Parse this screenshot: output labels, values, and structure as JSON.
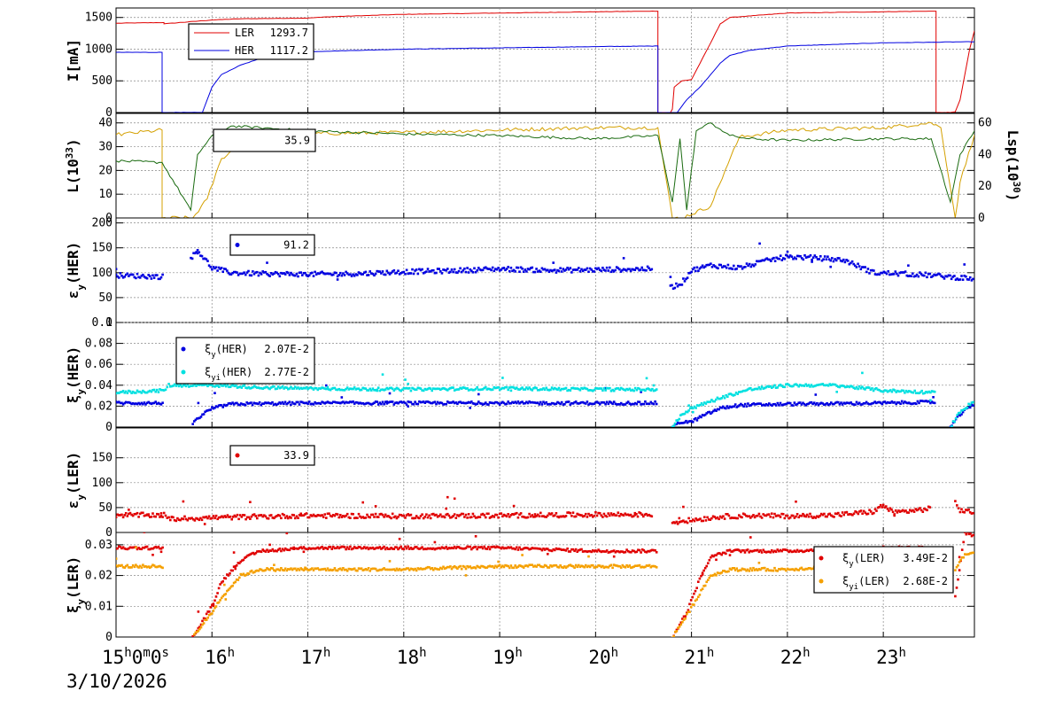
{
  "chart_data": {
    "date": "3/10/2026",
    "x_ticks": [
      {
        "h": 15,
        "label": "15",
        "sup": "h",
        "extra": "0m0s"
      },
      {
        "h": 16,
        "label": "16",
        "sup": "h"
      },
      {
        "h": 17,
        "label": "17",
        "sup": "h"
      },
      {
        "h": 18,
        "label": "18",
        "sup": "h"
      },
      {
        "h": 19,
        "label": "19",
        "sup": "h"
      },
      {
        "h": 20,
        "label": "20",
        "sup": "h"
      },
      {
        "h": 21,
        "label": "21",
        "sup": "h"
      },
      {
        "h": 22,
        "label": "22",
        "sup": "h"
      },
      {
        "h": 23,
        "label": "23",
        "sup": "h"
      }
    ],
    "xlim": [
      15.0,
      23.95
    ],
    "panels": [
      {
        "id": "current",
        "type": "line",
        "ylabel": "I[mA]",
        "ylim": [
          0,
          1650
        ],
        "yticks": [
          "0",
          "500",
          "1000",
          "1500"
        ],
        "ytick_values": [
          0,
          500,
          1000,
          1500
        ],
        "legend": [
          {
            "name": "LER",
            "value": "1293.7",
            "color": "#e00000"
          },
          {
            "name": "HER",
            "value": "1117.2",
            "color": "#0000e0"
          }
        ],
        "series": [
          {
            "name": "LER",
            "color": "#e00000",
            "x": [
              15.0,
              15.5,
              15.5,
              16.0,
              16.3,
              17.0,
              17.2,
              18.0,
              19.0,
              20.0,
              20.65,
              20.65,
              20.78,
              20.8,
              20.82,
              20.9,
              21.0,
              21.2,
              21.3,
              21.4,
              22.0,
              22.5,
              23.0,
              23.5,
              23.55,
              23.55,
              23.7,
              23.75,
              23.8,
              23.85,
              23.9,
              23.95
            ],
            "y": [
              1410,
              1420,
              1400,
              1460,
              1480,
              1490,
              1510,
              1550,
              1570,
              1590,
              1600,
              0,
              0,
              50,
              400,
              500,
              520,
              1100,
              1400,
              1500,
              1570,
              1580,
              1590,
              1600,
              1600,
              0,
              0,
              10,
              200,
              600,
              1000,
              1290
            ]
          },
          {
            "name": "HER",
            "color": "#0000e0",
            "x": [
              15.0,
              15.48,
              15.48,
              15.9,
              16.0,
              16.1,
              16.3,
              16.5,
              16.8,
              17.0,
              17.5,
              18.0,
              19.0,
              20.0,
              20.65,
              20.65,
              20.85,
              20.95,
              21.1,
              21.2,
              21.3,
              21.4,
              21.6,
              22.0,
              23.0,
              23.95
            ],
            "y": [
              950,
              950,
              0,
              0,
              400,
              600,
              750,
              850,
              920,
              960,
              980,
              1000,
              1020,
              1040,
              1050,
              0,
              0,
              200,
              420,
              600,
              780,
              900,
              980,
              1050,
              1100,
              1117
            ]
          }
        ]
      },
      {
        "id": "luminosity",
        "type": "line",
        "ylabel": "L(10^33)",
        "ylim": [
          0,
          44
        ],
        "yticks": [
          "0",
          "10",
          "20",
          "30",
          "40"
        ],
        "ytick_values": [
          0,
          10,
          20,
          30,
          40
        ],
        "y2label": "Lsp(10^30)",
        "y2lim": [
          0,
          66
        ],
        "y2ticks": [
          "0",
          "20",
          "40",
          "60"
        ],
        "y2tick_values": [
          0,
          20,
          40,
          60
        ],
        "legend": [
          {
            "name": "",
            "value": "35.9",
            "color": "#000000"
          }
        ],
        "series": [
          {
            "name": "L",
            "color": "#d4a000",
            "x": [
              15.0,
              15.48,
              15.48,
              15.8,
              15.95,
              16.1,
              16.3,
              16.6,
              17.0,
              18.0,
              19.0,
              20.0,
              20.65,
              20.72,
              20.8,
              20.9,
              21.2,
              21.35,
              21.5,
              22.0,
              23.0,
              23.5,
              23.6,
              23.75,
              23.8,
              23.95
            ],
            "y": [
              35,
              37,
              0,
              0,
              8,
              25,
              31,
              34,
              35.5,
              36,
              37,
              38,
              38,
              20,
              0,
              0,
              5,
              20,
              34,
              37,
              38,
              40,
              38,
              0,
              15,
              35
            ]
          },
          {
            "name": "Lsp",
            "color": "#1a6b10",
            "x": [
              15.0,
              15.48,
              15.78,
              15.85,
              16.0,
              16.2,
              16.5,
              17.0,
              18.0,
              19.0,
              20.0,
              20.65,
              20.8,
              20.88,
              20.95,
              21.05,
              21.2,
              21.3,
              21.4,
              21.6,
              22.0,
              23.0,
              23.5,
              23.7,
              23.8,
              23.95
            ],
            "y": [
              36,
              35,
              5,
              40,
              52,
              58,
              57,
              55,
              53,
              52,
              50,
              52,
              10,
              50,
              5,
              55,
              60,
              56,
              52,
              50,
              49,
              50,
              50,
              10,
              40,
              55
            ]
          }
        ]
      },
      {
        "id": "emit_her",
        "type": "scatter",
        "ylabel": "εy(HER)",
        "ylim": [
          0,
          210
        ],
        "yticks": [
          "0",
          "50",
          "100",
          "150",
          "200"
        ],
        "ytick_values": [
          0,
          50,
          100,
          150,
          200
        ],
        "legend": [
          {
            "name": "",
            "value": "91.2",
            "color": "#0000e0"
          }
        ],
        "series": [
          {
            "name": "εy(HER)",
            "color": "#0000e0",
            "x": [
              15.0,
              15.5,
              15.5,
              15.78,
              15.85,
              16.0,
              16.2,
              16.5,
              17.0,
              17.5,
              18.0,
              18.5,
              19.0,
              19.5,
              20.0,
              20.6,
              20.6,
              20.78,
              20.9,
              21.0,
              21.2,
              21.5,
              21.8,
              22.0,
              22.3,
              22.6,
              22.9,
              23.2,
              23.5,
              23.8,
              23.95
            ],
            "y": [
              95,
              92,
              null,
              130,
              145,
              110,
              100,
              98,
              97,
              98,
              102,
              104,
              108,
              105,
              106,
              108,
              null,
              70,
              80,
              105,
              115,
              110,
              125,
              132,
              130,
              125,
              100,
              98,
              95,
              90,
              88
            ]
          }
        ]
      },
      {
        "id": "tune_her",
        "type": "scatter",
        "ylabel": "ξy(HER)",
        "ylim": [
          0,
          0.1
        ],
        "yticks": [
          "0",
          "0.02",
          "0.04",
          "0.06",
          "0.08",
          "0.1"
        ],
        "ytick_values": [
          0,
          0.02,
          0.04,
          0.06,
          0.08,
          0.1
        ],
        "legend": [
          {
            "name": "ξy(HER)",
            "value": "2.07E-2",
            "color": "#0000e0"
          },
          {
            "name": "ξyi(HER)",
            "value": "2.77E-2",
            "color": "#00e0e0"
          }
        ],
        "series": [
          {
            "name": "ξy(HER)",
            "color": "#0000e0",
            "x": [
              15.0,
              15.5,
              15.5,
              15.8,
              15.9,
              16.0,
              16.2,
              17.0,
              18.0,
              19.0,
              20.0,
              20.65,
              20.65,
              20.8,
              20.9,
              21.0,
              21.1,
              21.3,
              21.5,
              22.0,
              23.0,
              23.55,
              23.55,
              23.7,
              23.8,
              23.95
            ],
            "y": [
              0.023,
              0.023,
              null,
              0.003,
              0.012,
              0.018,
              0.022,
              0.023,
              0.023,
              0.023,
              0.023,
              0.023,
              null,
              0,
              0.005,
              0.005,
              0.01,
              0.018,
              0.021,
              0.022,
              0.023,
              0.024,
              null,
              0,
              0.012,
              0.023
            ]
          },
          {
            "name": "ξyi(HER)",
            "color": "#00e0e0",
            "x": [
              15.0,
              15.5,
              15.55,
              16.0,
              16.5,
              17.0,
              18.0,
              19.0,
              20.0,
              20.65,
              20.65,
              20.8,
              20.9,
              21.0,
              21.3,
              21.6,
              22.0,
              22.5,
              23.0,
              23.55,
              23.55,
              23.7,
              23.8,
              23.95
            ],
            "y": [
              0.033,
              0.035,
              0.04,
              0.04,
              0.038,
              0.037,
              0.036,
              0.037,
              0.036,
              0.036,
              null,
              0,
              0.012,
              0.018,
              0.028,
              0.036,
              0.04,
              0.04,
              0.035,
              0.033,
              null,
              0,
              0.015,
              0.025
            ]
          }
        ]
      },
      {
        "id": "emit_ler",
        "type": "scatter",
        "ylabel": "εy(LER)",
        "ylim": [
          0,
          210
        ],
        "yticks": [
          "0",
          "50",
          "100",
          "150"
        ],
        "ytick_values": [
          0,
          50,
          100,
          150
        ],
        "legend": [
          {
            "name": "",
            "value": "33.9",
            "color": "#e00000"
          }
        ],
        "series": [
          {
            "name": "εy(LER)",
            "color": "#e00000",
            "x": [
              15.0,
              15.5,
              15.55,
              16.0,
              16.5,
              17.0,
              18.0,
              19.0,
              20.0,
              20.6,
              20.6,
              20.8,
              21.0,
              21.3,
              21.6,
              22.0,
              22.5,
              22.9,
              23.0,
              23.1,
              23.5,
              23.5,
              23.75,
              23.8,
              23.95
            ],
            "y": [
              35,
              35,
              27,
              30,
              32,
              34,
              33,
              34,
              36,
              36,
              null,
              20,
              25,
              32,
              34,
              33,
              35,
              42,
              55,
              40,
              48,
              null,
              60,
              45,
              40
            ]
          }
        ]
      },
      {
        "id": "tune_ler",
        "type": "scatter",
        "ylabel": "ξy(LER)",
        "ylim": [
          0,
          0.034
        ],
        "yticks": [
          "0",
          "0.01",
          "0.02",
          "0.03"
        ],
        "ytick_values": [
          0,
          0.01,
          0.02,
          0.03
        ],
        "legend": [
          {
            "name": "ξy(LER)",
            "value": "3.49E-2",
            "color": "#e00000"
          },
          {
            "name": "ξyi(LER)",
            "value": "2.68E-2",
            "color": "#f5a000"
          }
        ],
        "series": [
          {
            "name": "ξy(LER)",
            "color": "#e00000",
            "x": [
              15.0,
              15.5,
              15.5,
              15.8,
              16.0,
              16.1,
              16.3,
              16.5,
              17.0,
              18.0,
              19.0,
              20.0,
              20.65,
              20.65,
              20.8,
              20.95,
              21.1,
              21.2,
              21.4,
              21.6,
              22.0,
              23.0,
              23.55,
              23.55,
              23.75,
              23.85,
              23.95
            ],
            "y": [
              0.029,
              0.029,
              null,
              0,
              0.01,
              0.018,
              0.025,
              0.028,
              0.029,
              0.029,
              0.029,
              0.028,
              0.028,
              null,
              0,
              0.008,
              0.02,
              0.026,
              0.028,
              0.028,
              0.028,
              0.029,
              0.029,
              null,
              0.013,
              0.034,
              0.033
            ]
          },
          {
            "name": "ξyi(LER)",
            "color": "#f5a000",
            "x": [
              15.0,
              15.5,
              15.5,
              15.8,
              16.0,
              16.1,
              16.3,
              16.5,
              17.0,
              18.0,
              19.0,
              20.0,
              20.65,
              20.65,
              20.8,
              20.95,
              21.1,
              21.2,
              21.4,
              21.6,
              22.0,
              23.0,
              23.55,
              23.55,
              23.75,
              23.85,
              23.95
            ],
            "y": [
              0.023,
              0.023,
              null,
              0,
              0.008,
              0.013,
              0.02,
              0.022,
              0.022,
              0.022,
              0.023,
              0.023,
              0.023,
              null,
              0,
              0.007,
              0.015,
              0.02,
              0.022,
              0.022,
              0.022,
              0.024,
              0.025,
              null,
              0.022,
              0.027,
              0.027
            ]
          }
        ]
      }
    ]
  }
}
